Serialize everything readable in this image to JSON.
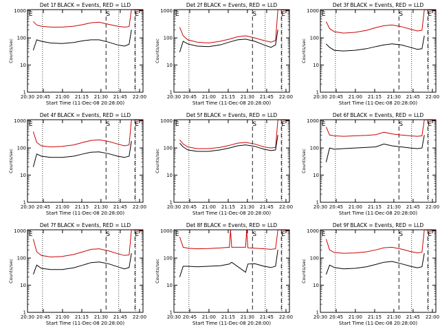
{
  "chart_data": [
    {
      "type": "line",
      "title": "Det 1f BLACK = Events, RED = LLD",
      "xlabel": "Start Time (11-Dec-08 20:28:00)",
      "ylabel": "Counts/sec",
      "x_ticks": [
        "20:30",
        "20:45",
        "21:00",
        "21:15",
        "21:30",
        "21:45",
        "22:00"
      ],
      "y_ticks": [
        "1",
        "10",
        "100",
        "1000"
      ],
      "yscale": "log",
      "ylim": [
        1,
        1100
      ],
      "markers": [
        "E",
        "S",
        "E"
      ],
      "series": [
        {
          "name": "Events",
          "color": "#000000",
          "x": [
            0.05,
            0.08,
            0.12,
            0.2,
            0.3,
            0.4,
            0.48,
            0.55,
            0.62,
            0.7,
            0.78,
            0.84,
            0.88,
            0.9
          ],
          "y": [
            35,
            85,
            75,
            65,
            62,
            68,
            78,
            85,
            85,
            70,
            55,
            50,
            58,
            200
          ]
        },
        {
          "name": "LLD",
          "color": "#cc0000",
          "x": [
            0.05,
            0.08,
            0.12,
            0.2,
            0.3,
            0.4,
            0.48,
            0.55,
            0.62,
            0.7,
            0.78,
            0.84,
            0.88,
            0.9,
            1.05,
            1.12
          ],
          "y": [
            400,
            300,
            270,
            250,
            250,
            270,
            310,
            360,
            380,
            320,
            270,
            250,
            260,
            1100,
            1000,
            400
          ]
        }
      ]
    },
    {
      "type": "line",
      "title": "Det 2f BLACK = Events, RED = LLD",
      "xlabel": "Start Time (11-Dec-08 20:28:00)",
      "ylabel": "Counts/sec",
      "x_ticks": [
        "20:30",
        "20:45",
        "21:00",
        "21:15",
        "21:30",
        "21:45",
        "22:00"
      ],
      "y_ticks": [
        "1",
        "10",
        "100",
        "1000"
      ],
      "yscale": "log",
      "ylim": [
        1,
        1100
      ],
      "markers": [
        "E",
        "S",
        "E"
      ],
      "series": [
        {
          "name": "Events",
          "color": "#000000",
          "x": [
            0.05,
            0.08,
            0.12,
            0.2,
            0.3,
            0.4,
            0.48,
            0.55,
            0.62,
            0.7,
            0.78,
            0.84,
            0.88,
            0.9
          ],
          "y": [
            30,
            75,
            60,
            50,
            48,
            55,
            70,
            85,
            90,
            75,
            55,
            45,
            55,
            200
          ]
        },
        {
          "name": "LLD",
          "color": "#cc0000",
          "x": [
            0.05,
            0.08,
            0.12,
            0.2,
            0.3,
            0.4,
            0.48,
            0.55,
            0.62,
            0.7,
            0.78,
            0.84,
            0.88,
            0.9,
            1.05,
            1.12
          ],
          "y": [
            250,
            120,
            85,
            70,
            65,
            75,
            90,
            110,
            120,
            100,
            80,
            70,
            80,
            1100,
            1000,
            300
          ]
        }
      ]
    },
    {
      "type": "line",
      "title": "Det 3f BLACK = Events, RED = LLD",
      "xlabel": "Start Time (11-Dec-08 20:28:00)",
      "ylabel": "Counts/sec",
      "x_ticks": [
        "20:30",
        "20:45",
        "21:00",
        "21:15",
        "21:30",
        "21:45",
        "22:00"
      ],
      "y_ticks": [
        "1",
        "10",
        "100",
        "1000"
      ],
      "yscale": "log",
      "ylim": [
        1,
        1100
      ],
      "markers": [
        "E",
        "S",
        "E"
      ],
      "series": [
        {
          "name": "Events",
          "color": "#000000",
          "x": [
            0.05,
            0.08,
            0.12,
            0.2,
            0.3,
            0.4,
            0.48,
            0.55,
            0.62,
            0.7,
            0.78,
            0.84,
            0.88,
            0.9
          ],
          "y": [
            60,
            45,
            35,
            33,
            35,
            40,
            48,
            55,
            60,
            55,
            45,
            38,
            40,
            120
          ]
        },
        {
          "name": "LLD",
          "color": "#cc0000",
          "x": [
            0.05,
            0.08,
            0.12,
            0.2,
            0.3,
            0.4,
            0.48,
            0.55,
            0.62,
            0.7,
            0.78,
            0.84,
            0.88,
            0.9,
            1.05,
            1.12
          ],
          "y": [
            400,
            220,
            170,
            150,
            160,
            190,
            240,
            280,
            300,
            260,
            210,
            180,
            190,
            1100,
            1000,
            500
          ]
        }
      ]
    },
    {
      "type": "line",
      "title": "Det 4f BLACK = Events, RED = LLD",
      "xlabel": "Start Time (11-Dec-08 20:28:00)",
      "ylabel": "Counts/sec",
      "x_ticks": [
        "20:30",
        "20:45",
        "21:00",
        "21:15",
        "21:30",
        "21:45",
        "22:00"
      ],
      "y_ticks": [
        "1",
        "10",
        "100",
        "1000"
      ],
      "yscale": "log",
      "ylim": [
        1,
        1100
      ],
      "markers": [
        "E",
        "S",
        "E"
      ],
      "series": [
        {
          "name": "Events",
          "color": "#000000",
          "x": [
            0.05,
            0.08,
            0.12,
            0.2,
            0.3,
            0.4,
            0.48,
            0.55,
            0.62,
            0.7,
            0.78,
            0.84,
            0.88,
            0.9
          ],
          "y": [
            20,
            60,
            50,
            45,
            45,
            50,
            60,
            70,
            72,
            62,
            50,
            45,
            50,
            180
          ]
        },
        {
          "name": "LLD",
          "color": "#cc0000",
          "x": [
            0.05,
            0.08,
            0.12,
            0.2,
            0.3,
            0.4,
            0.48,
            0.55,
            0.62,
            0.7,
            0.78,
            0.84,
            0.88,
            0.9,
            1.05,
            1.12
          ],
          "y": [
            400,
            160,
            120,
            110,
            115,
            130,
            160,
            190,
            200,
            175,
            140,
            120,
            130,
            1100,
            1000,
            600
          ]
        }
      ]
    },
    {
      "type": "line",
      "title": "Det 5f BLACK = Events, RED = LLD",
      "xlabel": "Start Time (11-Dec-08 20:28:00)",
      "ylabel": "Counts/sec",
      "x_ticks": [
        "20:30",
        "20:45",
        "21:00",
        "21:15",
        "21:30",
        "21:45",
        "22:00"
      ],
      "y_ticks": [
        "1",
        "10",
        "100",
        "1000"
      ],
      "yscale": "log",
      "ylim": [
        1,
        1100
      ],
      "markers": [
        "E",
        "S",
        "E"
      ],
      "series": [
        {
          "name": "Events",
          "color": "#000000",
          "x": [
            0.05,
            0.08,
            0.12,
            0.2,
            0.3,
            0.4,
            0.48,
            0.55,
            0.62,
            0.7,
            0.78,
            0.84,
            0.88,
            0.9
          ],
          "y": [
            150,
            110,
            85,
            75,
            75,
            85,
            100,
            120,
            130,
            115,
            90,
            80,
            85,
            300
          ]
        },
        {
          "name": "LLD",
          "color": "#cc0000",
          "x": [
            0.05,
            0.08,
            0.12,
            0.2,
            0.3,
            0.4,
            0.48,
            0.55,
            0.62,
            0.7,
            0.78,
            0.84,
            0.88,
            0.9,
            1.05,
            1.12
          ],
          "y": [
            200,
            140,
            110,
            95,
            95,
            105,
            125,
            150,
            160,
            140,
            110,
            100,
            105,
            1100,
            1000,
            200
          ]
        }
      ]
    },
    {
      "type": "line",
      "title": "Det 6f BLACK = Events, RED = LLD",
      "xlabel": "Start Time (11-Dec-08 20:28:00)",
      "ylabel": "Counts/sec",
      "x_ticks": [
        "20:30",
        "20:45",
        "21:00",
        "21:15",
        "21:30",
        "21:45",
        "22:00"
      ],
      "y_ticks": [
        "1",
        "10",
        "100",
        "1000"
      ],
      "yscale": "log",
      "ylim": [
        1,
        1100
      ],
      "markers": [
        "E",
        "S",
        "E"
      ],
      "series": [
        {
          "name": "Events",
          "color": "#000000",
          "x": [
            0.05,
            0.08,
            0.12,
            0.2,
            0.3,
            0.4,
            0.48,
            0.55,
            0.62,
            0.7,
            0.78,
            0.84,
            0.88,
            0.9
          ],
          "y": [
            30,
            100,
            90,
            95,
            100,
            105,
            110,
            140,
            120,
            110,
            100,
            95,
            100,
            300
          ]
        },
        {
          "name": "LLD",
          "color": "#cc0000",
          "x": [
            0.05,
            0.08,
            0.12,
            0.2,
            0.3,
            0.4,
            0.48,
            0.55,
            0.62,
            0.7,
            0.78,
            0.84,
            0.88,
            0.9,
            1.05,
            1.12
          ],
          "y": [
            600,
            300,
            280,
            270,
            280,
            290,
            310,
            380,
            330,
            300,
            280,
            270,
            280,
            1100,
            1000,
            600
          ]
        }
      ]
    },
    {
      "type": "line",
      "title": "Det 7f BLACK = Events, RED = LLD",
      "xlabel": "Start Time (11-Dec-08 20:28:00)",
      "ylabel": "Counts/sec",
      "x_ticks": [
        "20:30",
        "20:45",
        "21:00",
        "21:15",
        "21:30",
        "21:45",
        "22:00"
      ],
      "y_ticks": [
        "1",
        "10",
        "100",
        "1000"
      ],
      "yscale": "log",
      "ylim": [
        1,
        1100
      ],
      "markers": [
        "E",
        "S",
        "E"
      ],
      "series": [
        {
          "name": "Events",
          "color": "#000000",
          "x": [
            0.05,
            0.08,
            0.12,
            0.2,
            0.3,
            0.4,
            0.48,
            0.55,
            0.62,
            0.7,
            0.78,
            0.84,
            0.88,
            0.9
          ],
          "y": [
            25,
            55,
            42,
            38,
            38,
            44,
            55,
            68,
            72,
            62,
            48,
            40,
            45,
            150
          ]
        },
        {
          "name": "LLD",
          "color": "#cc0000",
          "x": [
            0.05,
            0.08,
            0.12,
            0.2,
            0.3,
            0.4,
            0.48,
            0.55,
            0.62,
            0.7,
            0.78,
            0.84,
            0.88,
            0.9,
            1.05,
            1.12
          ],
          "y": [
            500,
            170,
            125,
            110,
            115,
            135,
            170,
            210,
            220,
            185,
            145,
            125,
            130,
            1100,
            1000,
            500
          ]
        }
      ]
    },
    {
      "type": "line",
      "title": "Det 8f BLACK = Events, RED = LLD",
      "xlabel": "Start Time (11-Dec-08 20:28:00)",
      "ylabel": "Counts/sec",
      "x_ticks": [
        "20:30",
        "20:45",
        "21:00",
        "21:15",
        "21:30",
        "21:45",
        "22:00"
      ],
      "y_ticks": [
        "1",
        "10",
        "100",
        "1000"
      ],
      "yscale": "log",
      "ylim": [
        1,
        1100
      ],
      "markers": [
        "E",
        "S",
        "E"
      ],
      "series": [
        {
          "name": "Events",
          "color": "#000000",
          "x": [
            0.05,
            0.08,
            0.12,
            0.2,
            0.3,
            0.4,
            0.48,
            0.5,
            0.62,
            0.64,
            0.7,
            0.78,
            0.84,
            0.88,
            0.9
          ],
          "y": [
            20,
            50,
            50,
            48,
            50,
            52,
            60,
            70,
            30,
            60,
            62,
            50,
            45,
            50,
            200
          ]
        },
        {
          "name": "LLD",
          "color": "#cc0000",
          "x": [
            0.05,
            0.08,
            0.12,
            0.2,
            0.3,
            0.4,
            0.48,
            0.49,
            0.5,
            0.62,
            0.63,
            0.64,
            0.7,
            0.78,
            0.84,
            0.88,
            0.9,
            1.05,
            1.12
          ],
          "y": [
            600,
            250,
            230,
            220,
            225,
            235,
            250,
            1100,
            250,
            250,
            1100,
            240,
            230,
            220,
            210,
            220,
            1100,
            1000,
            500
          ]
        }
      ]
    },
    {
      "type": "line",
      "title": "Det 9f BLACK = Events, RED = LLD",
      "xlabel": "Start Time (11-Dec-08 20:28:00)",
      "ylabel": "Counts/sec",
      "x_ticks": [
        "20:30",
        "20:45",
        "21:00",
        "21:15",
        "21:30",
        "21:45",
        "22:00"
      ],
      "y_ticks": [
        "1",
        "10",
        "100",
        "1000"
      ],
      "yscale": "log",
      "ylim": [
        1,
        1100
      ],
      "markers": [
        "E",
        "S",
        "E"
      ],
      "series": [
        {
          "name": "Events",
          "color": "#000000",
          "x": [
            0.05,
            0.08,
            0.12,
            0.2,
            0.3,
            0.4,
            0.48,
            0.55,
            0.62,
            0.7,
            0.78,
            0.84,
            0.88,
            0.9
          ],
          "y": [
            25,
            55,
            45,
            40,
            42,
            48,
            58,
            70,
            75,
            62,
            50,
            44,
            48,
            150
          ]
        },
        {
          "name": "LLD",
          "color": "#cc0000",
          "x": [
            0.05,
            0.08,
            0.12,
            0.2,
            0.3,
            0.4,
            0.48,
            0.55,
            0.62,
            0.7,
            0.78,
            0.84,
            0.88,
            0.9,
            1.05,
            1.12
          ],
          "y": [
            500,
            200,
            160,
            150,
            155,
            170,
            200,
            240,
            250,
            215,
            175,
            155,
            165,
            1100,
            1000,
            500
          ]
        }
      ]
    }
  ]
}
